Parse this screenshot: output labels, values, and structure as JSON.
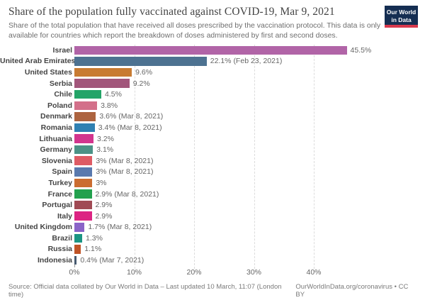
{
  "header": {
    "title": "Share of the population fully vaccinated against COVID-19, Mar 9, 2021",
    "subtitle": "Share of the total population that have received all doses prescribed by the vaccination protocol. This data is only available for countries which report the breakdown of doses administered by first and second doses.",
    "logo_line1": "Our World",
    "logo_line2": "in Data",
    "logo_bg": "#152e52",
    "logo_stripe": "#d8394d"
  },
  "chart_data": {
    "type": "bar",
    "orientation": "horizontal",
    "title": "Share of the population fully vaccinated against COVID-19, Mar 9, 2021",
    "categories": [
      "Israel",
      "United Arab Emirates",
      "United States",
      "Serbia",
      "Chile",
      "Poland",
      "Denmark",
      "Romania",
      "Lithuania",
      "Germany",
      "Slovenia",
      "Spain",
      "Turkey",
      "France",
      "Portugal",
      "Italy",
      "United Kingdom",
      "Brazil",
      "Russia",
      "Indonesia"
    ],
    "values": [
      45.5,
      22.1,
      9.6,
      9.2,
      4.5,
      3.8,
      3.6,
      3.4,
      3.2,
      3.1,
      3.0,
      3.0,
      3.0,
      2.9,
      2.9,
      2.9,
      1.7,
      1.3,
      1.1,
      0.4
    ],
    "value_labels": [
      "45.5%",
      "22.1% (Feb 23, 2021)",
      "9.6%",
      "9.2%",
      "4.5%",
      "3.8%",
      "3.6% (Mar 8, 2021)",
      "3.4% (Mar 8, 2021)",
      "3.2%",
      "3.1%",
      "3% (Mar 8, 2021)",
      "3% (Mar 8, 2021)",
      "3%",
      "2.9% (Mar 8, 2021)",
      "2.9%",
      "2.9%",
      "1.7% (Mar 8, 2021)",
      "1.3%",
      "1.1%",
      "0.4% (Mar 7, 2021)"
    ],
    "bar_colors": [
      "#b164a7",
      "#4d7291",
      "#c87b32",
      "#a2567b",
      "#24a468",
      "#d3708a",
      "#ad6440",
      "#2f80b2",
      "#d2358e",
      "#4c9286",
      "#de5b64",
      "#5979ae",
      "#cb6d31",
      "#23a14e",
      "#a04a54",
      "#dc2483",
      "#8a63c8",
      "#1b9583",
      "#bf5427",
      "#475a70"
    ],
    "x_tick_values": [
      0,
      10,
      20,
      30,
      40
    ],
    "x_tick_labels": [
      "0%",
      "10%",
      "20%",
      "30%",
      "40%"
    ],
    "xlim": [
      0,
      56.8
    ],
    "grid": "dashed-vertical",
    "xlabel": "",
    "ylabel": ""
  },
  "footer": {
    "source": "Source: Official data collated by Our World in Data – Last updated 10 March, 11:07 (London time)",
    "license": "OurWorldInData.org/coronavirus • CC BY"
  }
}
